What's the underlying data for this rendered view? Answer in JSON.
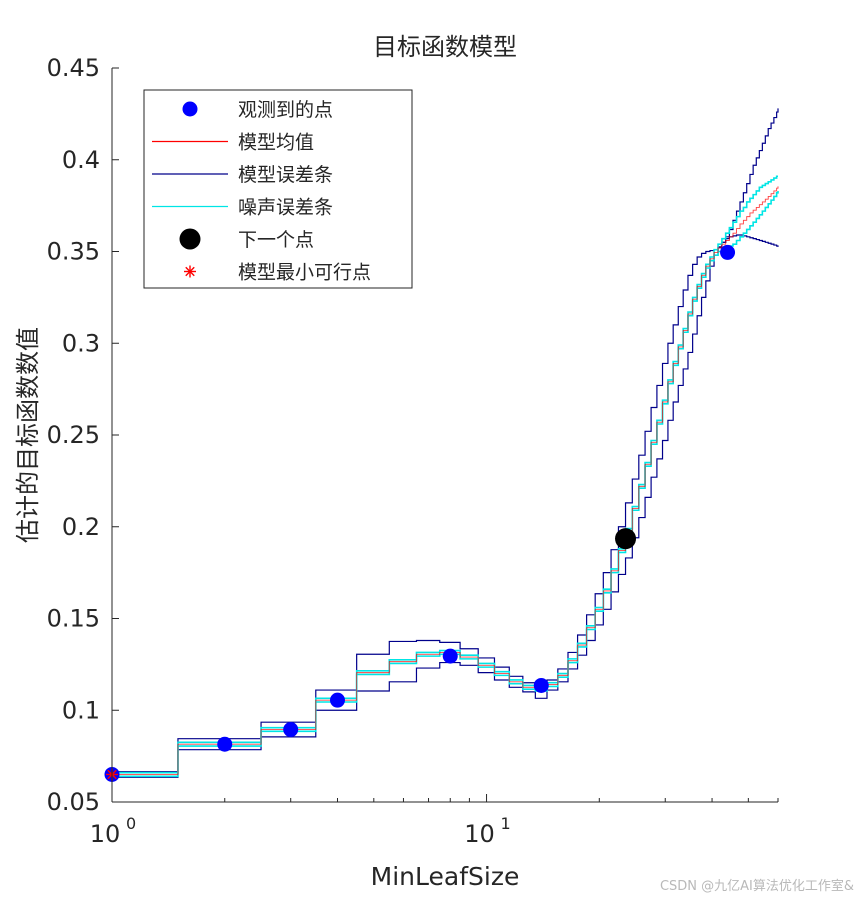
{
  "chart_data": {
    "type": "line",
    "title": "目标函数模型",
    "xlabel": "MinLeafSize",
    "ylabel": "估计的目标函数数值",
    "xscale": "log",
    "xlim": [
      1,
      60
    ],
    "ylim": [
      0.05,
      0.45
    ],
    "yticks": [
      "0.05",
      "0.1",
      "0.15",
      "0.2",
      "0.25",
      "0.3",
      "0.35",
      "0.4",
      "0.45"
    ],
    "xticks": [
      {
        "value": 1,
        "base": "10",
        "exp": "0"
      },
      {
        "value": 10,
        "base": "10",
        "exp": "1"
      }
    ],
    "legend": {
      "position": "top-left",
      "entries": [
        {
          "label": "观测到的点",
          "marker": "circle",
          "color": "#0000ff"
        },
        {
          "label": "模型均值",
          "marker": "line",
          "color": "#ff0000"
        },
        {
          "label": "模型误差条",
          "marker": "line",
          "color": "#00008b"
        },
        {
          "label": "噪声误差条",
          "marker": "line",
          "color": "#00e5e5"
        },
        {
          "label": "下一个点",
          "marker": "circle",
          "color": "#000000"
        },
        {
          "label": "模型最小可行点",
          "marker": "asterisk",
          "color": "#ff0000"
        }
      ]
    },
    "observed_points": [
      {
        "x": 1,
        "y": 0.065
      },
      {
        "x": 2,
        "y": 0.0815
      },
      {
        "x": 3,
        "y": 0.0895
      },
      {
        "x": 4,
        "y": 0.1055
      },
      {
        "x": 8,
        "y": 0.1295
      },
      {
        "x": 14,
        "y": 0.1135
      },
      {
        "x": 44,
        "y": 0.3495
      }
    ],
    "next_point": {
      "x": 23.5,
      "y": 0.1935
    },
    "min_feasible_point": {
      "x": 1,
      "y": 0.065
    },
    "model_mean": {
      "x": [
        1,
        1.5,
        2.5,
        3.5,
        4.5,
        5.5,
        6.5,
        7.5,
        8.5,
        9.5,
        10.5,
        11.5,
        12.5,
        13.5,
        14.5,
        15.5,
        16.5,
        17.5,
        18.5,
        19.5,
        20.5,
        21.5,
        22.5,
        23.5,
        24.5,
        25.5,
        26.5,
        27.5,
        28.5,
        29.5,
        30.5,
        31.5,
        32.5,
        33.5,
        34.5,
        35.5,
        36.5,
        37.5,
        38.5,
        39.5,
        40.5,
        41.5,
        42.5,
        43.5,
        44.5,
        45.5,
        46.5,
        47.5,
        48.5,
        49.5,
        50.5,
        51.5,
        52.5,
        53.5,
        54.5,
        55.5,
        56.5,
        57.5,
        58.5,
        59.5,
        60
      ],
      "y": [
        0.065,
        0.0815,
        0.0895,
        0.1055,
        0.1205,
        0.1265,
        0.1305,
        0.1315,
        0.129,
        0.1245,
        0.12,
        0.1155,
        0.1125,
        0.1115,
        0.114,
        0.119,
        0.127,
        0.1355,
        0.145,
        0.155,
        0.165,
        0.176,
        0.187,
        0.198,
        0.21,
        0.222,
        0.234,
        0.246,
        0.257,
        0.268,
        0.279,
        0.289,
        0.298,
        0.307,
        0.316,
        0.324,
        0.331,
        0.337,
        0.342,
        0.346,
        0.3495,
        0.352,
        0.354,
        0.356,
        0.358,
        0.36,
        0.3625,
        0.365,
        0.367,
        0.369,
        0.371,
        0.3725,
        0.374,
        0.3755,
        0.377,
        0.3785,
        0.38,
        0.3815,
        0.383,
        0.3845,
        0.3855
      ]
    },
    "noise_band": {
      "upper": [
        0.066,
        0.0825,
        0.0905,
        0.1065,
        0.1215,
        0.1275,
        0.1315,
        0.1325,
        0.13,
        0.1255,
        0.121,
        0.1165,
        0.1135,
        0.1125,
        0.115,
        0.12,
        0.128,
        0.1365,
        0.146,
        0.156,
        0.166,
        0.177,
        0.188,
        0.199,
        0.211,
        0.223,
        0.235,
        0.247,
        0.258,
        0.269,
        0.28,
        0.29,
        0.299,
        0.308,
        0.317,
        0.325,
        0.332,
        0.338,
        0.343,
        0.347,
        0.351,
        0.354,
        0.357,
        0.36,
        0.363,
        0.366,
        0.369,
        0.372,
        0.374,
        0.377,
        0.379,
        0.381,
        0.383,
        0.385,
        0.386,
        0.387,
        0.388,
        0.389,
        0.39,
        0.391,
        0.391
      ],
      "lower": [
        0.064,
        0.0805,
        0.0885,
        0.1045,
        0.1195,
        0.1255,
        0.1295,
        0.1305,
        0.128,
        0.1235,
        0.119,
        0.1145,
        0.1115,
        0.1105,
        0.113,
        0.118,
        0.126,
        0.1345,
        0.144,
        0.154,
        0.164,
        0.175,
        0.186,
        0.197,
        0.209,
        0.221,
        0.233,
        0.245,
        0.256,
        0.267,
        0.278,
        0.288,
        0.297,
        0.306,
        0.315,
        0.323,
        0.33,
        0.336,
        0.341,
        0.345,
        0.348,
        0.35,
        0.351,
        0.352,
        0.353,
        0.354,
        0.356,
        0.358,
        0.36,
        0.362,
        0.364,
        0.366,
        0.368,
        0.37,
        0.372,
        0.374,
        0.376,
        0.378,
        0.38,
        0.382,
        0.383
      ]
    },
    "model_band": {
      "upper": [
        0.0665,
        0.0845,
        0.0935,
        0.111,
        0.1305,
        0.1375,
        0.138,
        0.137,
        0.1335,
        0.1285,
        0.1235,
        0.1185,
        0.115,
        0.1135,
        0.1165,
        0.1225,
        0.1315,
        0.141,
        0.152,
        0.1635,
        0.175,
        0.1875,
        0.2,
        0.213,
        0.226,
        0.239,
        0.252,
        0.265,
        0.277,
        0.289,
        0.3,
        0.31,
        0.32,
        0.329,
        0.337,
        0.343,
        0.347,
        0.349,
        0.35,
        0.3505,
        0.351,
        0.3525,
        0.355,
        0.358,
        0.362,
        0.367,
        0.372,
        0.377,
        0.382,
        0.387,
        0.392,
        0.397,
        0.401,
        0.405,
        0.409,
        0.413,
        0.417,
        0.42,
        0.423,
        0.426,
        0.428
      ],
      "lower": [
        0.0635,
        0.0785,
        0.0855,
        0.1,
        0.1105,
        0.1155,
        0.123,
        0.126,
        0.1245,
        0.1205,
        0.1165,
        0.1125,
        0.11,
        0.1065,
        0.111,
        0.1155,
        0.1225,
        0.13,
        0.138,
        0.1465,
        0.155,
        0.1645,
        0.174,
        0.183,
        0.194,
        0.205,
        0.216,
        0.227,
        0.237,
        0.247,
        0.258,
        0.268,
        0.277,
        0.286,
        0.295,
        0.305,
        0.315,
        0.325,
        0.334,
        0.342,
        0.348,
        0.352,
        0.355,
        0.357,
        0.358,
        0.3585,
        0.359,
        0.359,
        0.3585,
        0.358,
        0.3575,
        0.357,
        0.3565,
        0.356,
        0.3555,
        0.355,
        0.3545,
        0.354,
        0.3535,
        0.353,
        0.3525
      ]
    }
  },
  "watermark": "CSDN @九亿AI算法优化工作室&"
}
